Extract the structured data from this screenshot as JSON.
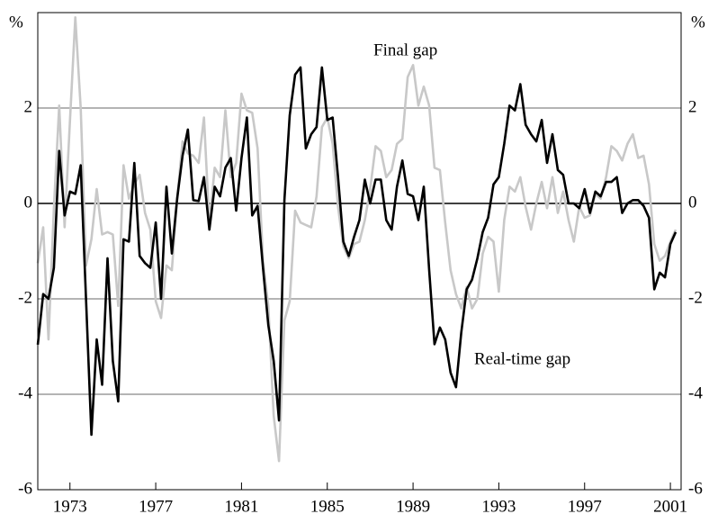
{
  "chart_data": {
    "type": "line",
    "y_unit": "%",
    "annotations": [
      "Final gap",
      "Real-time gap"
    ],
    "x": [
      1971.5,
      1971.75,
      1972,
      1972.25,
      1972.5,
      1972.75,
      1973,
      1973.25,
      1973.5,
      1973.75,
      1974,
      1974.25,
      1974.5,
      1974.75,
      1975,
      1975.25,
      1975.5,
      1975.75,
      1976,
      1976.25,
      1976.5,
      1976.75,
      1977,
      1977.25,
      1977.5,
      1977.75,
      1978,
      1978.25,
      1978.5,
      1978.75,
      1979,
      1979.25,
      1979.5,
      1979.75,
      1980,
      1980.25,
      1980.5,
      1980.75,
      1981,
      1981.25,
      1981.5,
      1981.75,
      1982,
      1982.25,
      1982.5,
      1982.75,
      1983,
      1983.25,
      1983.5,
      1983.75,
      1984,
      1984.25,
      1984.5,
      1984.75,
      1985,
      1985.25,
      1985.5,
      1985.75,
      1986,
      1986.25,
      1986.5,
      1986.75,
      1987,
      1987.25,
      1987.5,
      1987.75,
      1988,
      1988.25,
      1988.5,
      1988.75,
      1989,
      1989.25,
      1989.5,
      1989.75,
      1990,
      1990.25,
      1990.5,
      1990.75,
      1991,
      1991.25,
      1991.5,
      1991.75,
      1992,
      1992.25,
      1992.5,
      1992.75,
      1993,
      1993.25,
      1993.5,
      1993.75,
      1994,
      1994.25,
      1994.5,
      1994.75,
      1995,
      1995.25,
      1995.5,
      1995.75,
      1996,
      1996.25,
      1996.5,
      1996.75,
      1997,
      1997.25,
      1997.5,
      1997.75,
      1998,
      1998.25,
      1998.5,
      1998.75,
      1999,
      1999.25,
      1999.5,
      1999.75,
      2000,
      2000.25,
      2000.5,
      2000.75,
      2001,
      2001.25
    ],
    "series": [
      {
        "name": "Final gap",
        "color": "#c8c8c8",
        "values": [
          -1.25,
          -0.5,
          -2.85,
          -0.1,
          2.05,
          -0.5,
          1.75,
          3.9,
          2.0,
          -1.3,
          -0.75,
          0.3,
          -0.65,
          -0.6,
          -0.65,
          -2.15,
          0.8,
          0.1,
          0.4,
          0.6,
          -0.2,
          -0.55,
          -2.05,
          -2.4,
          -1.3,
          -1.4,
          0.1,
          1.3,
          1.05,
          1.0,
          0.85,
          1.8,
          -0.45,
          0.75,
          0.55,
          1.95,
          0.55,
          0.85,
          2.3,
          1.95,
          1.9,
          1.15,
          -1.2,
          -2.15,
          -4.45,
          -5.4,
          -2.45,
          -2.05,
          -0.15,
          -0.4,
          -0.45,
          -0.5,
          0.15,
          1.6,
          1.8,
          1.25,
          -0.07,
          -0.9,
          -1.15,
          -0.85,
          -0.8,
          -0.35,
          0.3,
          1.2,
          1.1,
          0.55,
          0.7,
          1.25,
          1.35,
          2.65,
          2.9,
          2.05,
          2.45,
          2.05,
          0.75,
          0.7,
          -0.4,
          -1.4,
          -1.9,
          -2.2,
          -1.75,
          -2.2,
          -2.0,
          -1.05,
          -0.7,
          -0.8,
          -1.85,
          -0.35,
          0.35,
          0.25,
          0.55,
          -0.07,
          -0.55,
          0,
          0.45,
          -0.1,
          0.55,
          -0.2,
          0.25,
          -0.35,
          -0.8,
          -0.07,
          -0.3,
          -0.25,
          0.2,
          0.1,
          0.55,
          1.2,
          1.1,
          0.9,
          1.25,
          1.45,
          0.95,
          1.0,
          0.4,
          -0.85,
          -1.2,
          -1.1,
          -0.8,
          -0.55
        ]
      },
      {
        "name": "Real-time gap",
        "color": "#000000",
        "values": [
          -2.96,
          -1.9,
          -2.0,
          -1.35,
          1.1,
          -0.25,
          0.25,
          0.2,
          0.8,
          -2.0,
          -4.85,
          -2.85,
          -3.8,
          -1.15,
          -3.3,
          -4.15,
          -0.75,
          -0.8,
          0.85,
          -1.1,
          -1.25,
          -1.35,
          -0.4,
          -2.0,
          0.35,
          -1.05,
          0.1,
          1.0,
          1.55,
          0.07,
          0.05,
          0.55,
          -0.55,
          0.35,
          0.15,
          0.75,
          0.95,
          -0.15,
          0.95,
          1.8,
          -0.25,
          -0.05,
          -1.35,
          -2.55,
          -3.3,
          -4.55,
          0.07,
          1.85,
          2.7,
          2.85,
          1.15,
          1.45,
          1.6,
          2.85,
          1.75,
          1.8,
          0.55,
          -0.8,
          -1.1,
          -0.7,
          -0.35,
          0.5,
          0,
          0.5,
          0.5,
          -0.35,
          -0.55,
          0.35,
          0.9,
          0.2,
          0.15,
          -0.35,
          0.35,
          -1.4,
          -2.95,
          -2.6,
          -2.85,
          -3.55,
          -3.85,
          -2.7,
          -1.8,
          -1.6,
          -1.15,
          -0.6,
          -0.3,
          0.4,
          0.55,
          1.25,
          2.05,
          1.95,
          2.5,
          1.65,
          1.45,
          1.3,
          1.75,
          0.85,
          1.45,
          0.7,
          0.6,
          0,
          0,
          -0.1,
          0.3,
          -0.2,
          0.25,
          0.15,
          0.45,
          0.45,
          0.55,
          -0.2,
          0,
          0.07,
          0.07,
          -0.05,
          -0.3,
          -1.8,
          -1.45,
          -1.55,
          -0.85,
          -0.6
        ]
      }
    ],
    "xlim": [
      1971.5,
      2001.5
    ],
    "xticks": [
      1973,
      1977,
      1981,
      1985,
      1989,
      1993,
      1997,
      2001
    ],
    "ylim": [
      -6,
      4
    ],
    "yticks": [
      -6,
      -4,
      -2,
      0,
      2
    ],
    "grid": true
  }
}
